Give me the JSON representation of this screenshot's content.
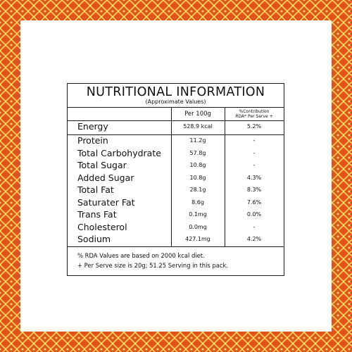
{
  "panel": {
    "title": "NUTRITIONAL INFORMATION",
    "subtitle": "(Approximate Values)",
    "col_per100g": "Per 100g",
    "col_rda_line1": "%Contribution",
    "col_rda_line2": "RDA* Per Serve +"
  },
  "energy": {
    "name": "Energy",
    "value": "528.9 kcal",
    "rda": "5.2%"
  },
  "nutrients": [
    {
      "name": "Protein",
      "value": "11.2g",
      "rda": "-"
    },
    {
      "name": "Total Carbohydrate",
      "value": "57.8g",
      "rda": "-"
    },
    {
      "name": "Total Sugar",
      "value": "10.8g",
      "rda": "-"
    },
    {
      "name": "Added Sugar",
      "value": "10.8g",
      "rda": "4.3%"
    },
    {
      "name": "Total Fat",
      "value": "28.1g",
      "rda": "8.3%"
    },
    {
      "name": "Saturater Fat",
      "value": "8.6g",
      "rda": "7.6%"
    },
    {
      "name": "Trans Fat",
      "value": "0.1mg",
      "rda": "0.0%"
    },
    {
      "name": "Cholesterol",
      "value": "0.0mg",
      "rda": "-"
    },
    {
      "name": "Sodium",
      "value": "427.1mg",
      "rda": "4.2%"
    }
  ],
  "footnotes": {
    "line1": "% RDA Values are based on 2000 kcal diet.",
    "line2": "+ Per Serve size is 20g; 51.25 Serving in this pack."
  },
  "colors": {
    "frame_background": "#e1531e",
    "frame_pattern": "#f5d55a",
    "panel_background": "#ffffff",
    "text": "#111111"
  }
}
